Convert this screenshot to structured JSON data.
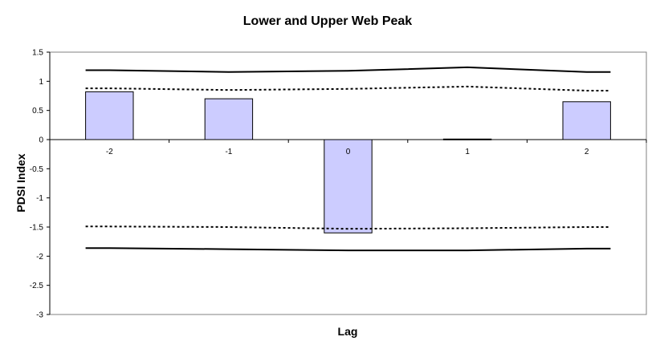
{
  "chart_data": {
    "type": "bar",
    "title": "Lower and Upper Web Peak",
    "xlabel": "Lag",
    "ylabel": "PDSI Index",
    "categories": [
      "-2",
      "-1",
      "0",
      "1",
      "2"
    ],
    "ylim": [
      -3,
      1.5
    ],
    "yticks": [
      "1.5",
      "1",
      "0.5",
      "0",
      "-0.5",
      "-1",
      "-1.5",
      "-2",
      "-2.5",
      "-3"
    ],
    "grid": false,
    "legend": "none",
    "series": [
      {
        "kind": "bar",
        "values": [
          0.82,
          0.7,
          -1.6,
          0.01,
          0.65
        ],
        "color": "#ccccff"
      },
      {
        "kind": "line",
        "style": "solid",
        "values": [
          1.19,
          1.16,
          1.18,
          1.24,
          1.16
        ],
        "color": "#000000"
      },
      {
        "kind": "line",
        "style": "dotted",
        "values": [
          0.88,
          0.85,
          0.87,
          0.91,
          0.84
        ],
        "color": "#000000"
      },
      {
        "kind": "line",
        "style": "dotted",
        "values": [
          -1.49,
          -1.5,
          -1.53,
          -1.52,
          -1.5
        ],
        "color": "#000000"
      },
      {
        "kind": "line",
        "style": "solid",
        "values": [
          -1.86,
          -1.88,
          -1.9,
          -1.9,
          -1.87
        ],
        "color": "#000000"
      }
    ]
  }
}
